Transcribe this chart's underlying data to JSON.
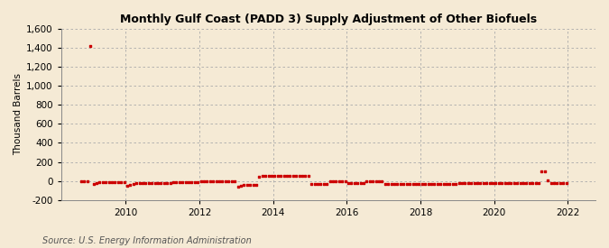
{
  "title": "Monthly Gulf Coast (PADD 3) Supply Adjustment of Other Biofuels",
  "ylabel": "Thousand Barrels",
  "source": "Source: U.S. Energy Information Administration",
  "line_color": "#cc0000",
  "background_color": "#f5ead5",
  "plot_bg_color": "#f5ead5",
  "ylim": [
    -200,
    1600
  ],
  "yticks": [
    -200,
    0,
    200,
    400,
    600,
    800,
    1000,
    1200,
    1400,
    1600
  ],
  "xlim_start": 2008.25,
  "xlim_end": 2022.75,
  "xticks": [
    2010,
    2012,
    2014,
    2016,
    2018,
    2020,
    2022
  ],
  "data": {
    "2008-10": 0,
    "2008-11": 0,
    "2008-12": 0,
    "2009-01": 1420,
    "2009-02": -30,
    "2009-03": -20,
    "2009-04": -15,
    "2009-05": -10,
    "2009-06": -10,
    "2009-07": -10,
    "2009-08": -10,
    "2009-09": -10,
    "2009-10": -10,
    "2009-11": -10,
    "2009-12": -10,
    "2010-01": -50,
    "2010-02": -40,
    "2010-03": -30,
    "2010-04": -20,
    "2010-05": -20,
    "2010-06": -20,
    "2010-07": -20,
    "2010-08": -20,
    "2010-09": -20,
    "2010-10": -20,
    "2010-11": -20,
    "2010-12": -20,
    "2011-01": -20,
    "2011-02": -20,
    "2011-03": -20,
    "2011-04": -10,
    "2011-05": -10,
    "2011-06": -10,
    "2011-07": -10,
    "2011-08": -10,
    "2011-09": -10,
    "2011-10": -10,
    "2011-11": -10,
    "2011-12": -10,
    "2012-01": 0,
    "2012-02": 0,
    "2012-03": 0,
    "2012-04": 0,
    "2012-05": 0,
    "2012-06": 0,
    "2012-07": 0,
    "2012-08": 0,
    "2012-09": 0,
    "2012-10": 0,
    "2012-11": 0,
    "2012-12": 0,
    "2013-01": -60,
    "2013-02": -50,
    "2013-03": -40,
    "2013-04": -40,
    "2013-05": -40,
    "2013-06": -40,
    "2013-07": -40,
    "2013-08": 40,
    "2013-09": 50,
    "2013-10": 50,
    "2013-11": 50,
    "2013-12": 50,
    "2014-01": 50,
    "2014-02": 50,
    "2014-03": 50,
    "2014-04": 50,
    "2014-05": 50,
    "2014-06": 50,
    "2014-07": 50,
    "2014-08": 50,
    "2014-09": 50,
    "2014-10": 50,
    "2014-11": 50,
    "2014-12": 50,
    "2015-01": -30,
    "2015-02": -30,
    "2015-03": -30,
    "2015-04": -30,
    "2015-05": -30,
    "2015-06": -30,
    "2015-07": 0,
    "2015-08": 0,
    "2015-09": 0,
    "2015-10": 0,
    "2015-11": 0,
    "2015-12": 0,
    "2016-01": -20,
    "2016-02": -20,
    "2016-03": -20,
    "2016-04": -20,
    "2016-05": -20,
    "2016-06": -20,
    "2016-07": 0,
    "2016-08": 0,
    "2016-09": 0,
    "2016-10": 0,
    "2016-11": 0,
    "2016-12": 0,
    "2017-01": -30,
    "2017-02": -30,
    "2017-03": -30,
    "2017-04": -30,
    "2017-05": -30,
    "2017-06": -30,
    "2017-07": -30,
    "2017-08": -30,
    "2017-09": -30,
    "2017-10": -30,
    "2017-11": -30,
    "2017-12": -30,
    "2018-01": -30,
    "2018-02": -30,
    "2018-03": -30,
    "2018-04": -30,
    "2018-05": -30,
    "2018-06": -30,
    "2018-07": -30,
    "2018-08": -30,
    "2018-09": -30,
    "2018-10": -30,
    "2018-11": -30,
    "2018-12": -30,
    "2019-01": -20,
    "2019-02": -20,
    "2019-03": -20,
    "2019-04": -20,
    "2019-05": -20,
    "2019-06": -20,
    "2019-07": -20,
    "2019-08": -20,
    "2019-09": -20,
    "2019-10": -20,
    "2019-11": -20,
    "2019-12": -20,
    "2020-01": -20,
    "2020-02": -20,
    "2020-03": -20,
    "2020-04": -20,
    "2020-05": -20,
    "2020-06": -20,
    "2020-07": -20,
    "2020-08": -20,
    "2020-09": -20,
    "2020-10": -20,
    "2020-11": -20,
    "2020-12": -20,
    "2021-01": -20,
    "2021-02": -20,
    "2021-03": -20,
    "2021-04": 105,
    "2021-05": 100,
    "2021-06": 5,
    "2021-07": -20,
    "2021-08": -20,
    "2021-09": -20,
    "2021-10": -20,
    "2021-11": -20,
    "2021-12": -20
  }
}
